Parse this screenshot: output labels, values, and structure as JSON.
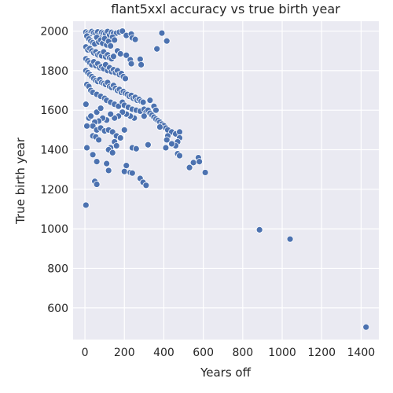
{
  "chart_data": {
    "type": "scatter",
    "title": "flant5xxl accuracy vs true birth year",
    "xlabel": "Years off",
    "ylabel": "True birth year",
    "xlim": [
      -60,
      1490
    ],
    "ylim": [
      440,
      2050
    ],
    "xticks": [
      0,
      200,
      400,
      600,
      800,
      1000,
      1200,
      1400
    ],
    "yticks": [
      600,
      800,
      1000,
      1200,
      1400,
      1600,
      1800,
      2000
    ],
    "grid": true,
    "background": "#eaeaf2",
    "grid_color": "#ffffff",
    "point_color": "#4c72b0",
    "points": [
      [
        5,
        1995
      ],
      [
        15,
        1990
      ],
      [
        25,
        1985
      ],
      [
        35,
        1998
      ],
      [
        45,
        1992
      ],
      [
        55,
        1988
      ],
      [
        65,
        1996
      ],
      [
        75,
        1982
      ],
      [
        85,
        1994
      ],
      [
        95,
        1990
      ],
      [
        105,
        1986
      ],
      [
        115,
        1998
      ],
      [
        125,
        1980
      ],
      [
        135,
        1994
      ],
      [
        145,
        1988
      ],
      [
        160,
        1990
      ],
      [
        175,
        1995
      ],
      [
        190,
        2000
      ],
      [
        210,
        1978
      ],
      [
        235,
        1985
      ],
      [
        240,
        1966
      ],
      [
        255,
        1958
      ],
      [
        10,
        1975
      ],
      [
        20,
        1960
      ],
      [
        30,
        1950
      ],
      [
        40,
        1942
      ],
      [
        50,
        1935
      ],
      [
        60,
        1968
      ],
      [
        70,
        1945
      ],
      [
        80,
        1955
      ],
      [
        90,
        1938
      ],
      [
        100,
        1962
      ],
      [
        110,
        1930
      ],
      [
        120,
        1948
      ],
      [
        130,
        1925
      ],
      [
        140,
        1970
      ],
      [
        150,
        1955
      ],
      [
        5,
        1920
      ],
      [
        15,
        1905
      ],
      [
        25,
        1912
      ],
      [
        35,
        1900
      ],
      [
        45,
        1890
      ],
      [
        55,
        1895
      ],
      [
        65,
        1880
      ],
      [
        75,
        1885
      ],
      [
        85,
        1875
      ],
      [
        95,
        1895
      ],
      [
        105,
        1870
      ],
      [
        115,
        1880
      ],
      [
        125,
        1865
      ],
      [
        135,
        1860
      ],
      [
        145,
        1872
      ],
      [
        165,
        1900
      ],
      [
        180,
        1885
      ],
      [
        210,
        1878
      ],
      [
        230,
        1855
      ],
      [
        235,
        1835
      ],
      [
        280,
        1858
      ],
      [
        285,
        1830
      ],
      [
        390,
        1990
      ],
      [
        415,
        1950
      ],
      [
        365,
        1910
      ],
      [
        5,
        1860
      ],
      [
        15,
        1850
      ],
      [
        25,
        1840
      ],
      [
        35,
        1830
      ],
      [
        45,
        1845
      ],
      [
        55,
        1825
      ],
      [
        65,
        1835
      ],
      [
        75,
        1815
      ],
      [
        85,
        1820
      ],
      [
        95,
        1810
      ],
      [
        105,
        1830
      ],
      [
        115,
        1800
      ],
      [
        125,
        1815
      ],
      [
        135,
        1795
      ],
      [
        145,
        1805
      ],
      [
        155,
        1790
      ],
      [
        165,
        1800
      ],
      [
        175,
        1780
      ],
      [
        185,
        1785
      ],
      [
        195,
        1770
      ],
      [
        205,
        1760
      ],
      [
        5,
        1800
      ],
      [
        15,
        1790
      ],
      [
        25,
        1780
      ],
      [
        35,
        1770
      ],
      [
        45,
        1760
      ],
      [
        55,
        1750
      ],
      [
        65,
        1745
      ],
      [
        75,
        1755
      ],
      [
        85,
        1740
      ],
      [
        95,
        1735
      ],
      [
        105,
        1730
      ],
      [
        115,
        1740
      ],
      [
        125,
        1720
      ],
      [
        135,
        1715
      ],
      [
        145,
        1725
      ],
      [
        155,
        1710
      ],
      [
        165,
        1700
      ],
      [
        175,
        1705
      ],
      [
        185,
        1690
      ],
      [
        195,
        1695
      ],
      [
        205,
        1685
      ],
      [
        215,
        1680
      ],
      [
        225,
        1670
      ],
      [
        235,
        1675
      ],
      [
        245,
        1660
      ],
      [
        255,
        1665
      ],
      [
        265,
        1650
      ],
      [
        275,
        1655
      ],
      [
        285,
        1645
      ],
      [
        295,
        1640
      ],
      [
        10,
        1730
      ],
      [
        20,
        1720
      ],
      [
        30,
        1700
      ],
      [
        40,
        1690
      ],
      [
        60,
        1680
      ],
      [
        80,
        1670
      ],
      [
        100,
        1660
      ],
      [
        110,
        1650
      ],
      [
        130,
        1640
      ],
      [
        150,
        1630
      ],
      [
        170,
        1620
      ],
      [
        190,
        1640
      ],
      [
        200,
        1625
      ],
      [
        220,
        1615
      ],
      [
        240,
        1605
      ],
      [
        260,
        1600
      ],
      [
        280,
        1595
      ],
      [
        300,
        1605
      ],
      [
        310,
        1590
      ],
      [
        320,
        1600
      ],
      [
        330,
        1585
      ],
      [
        340,
        1575
      ],
      [
        350,
        1565
      ],
      [
        360,
        1555
      ],
      [
        370,
        1548
      ],
      [
        380,
        1540
      ],
      [
        390,
        1530
      ],
      [
        400,
        1522
      ],
      [
        410,
        1510
      ],
      [
        420,
        1500
      ],
      [
        440,
        1490
      ],
      [
        460,
        1480
      ],
      [
        480,
        1490
      ],
      [
        480,
        1460
      ],
      [
        470,
        1440
      ],
      [
        460,
        1420
      ],
      [
        470,
        1380
      ],
      [
        420,
        1470
      ],
      [
        415,
        1450
      ],
      [
        410,
        1410
      ],
      [
        440,
        1430
      ],
      [
        330,
        1650
      ],
      [
        350,
        1620
      ],
      [
        360,
        1600
      ],
      [
        300,
        1570
      ],
      [
        250,
        1560
      ],
      [
        230,
        1570
      ],
      [
        210,
        1580
      ],
      [
        190,
        1590
      ],
      [
        170,
        1570
      ],
      [
        150,
        1560
      ],
      [
        130,
        1580
      ],
      [
        110,
        1550
      ],
      [
        90,
        1560
      ],
      [
        70,
        1545
      ],
      [
        50,
        1540
      ],
      [
        40,
        1520
      ],
      [
        60,
        1500
      ],
      [
        80,
        1510
      ],
      [
        100,
        1495
      ],
      [
        120,
        1500
      ],
      [
        140,
        1490
      ],
      [
        160,
        1470
      ],
      [
        180,
        1460
      ],
      [
        150,
        1440
      ],
      [
        160,
        1420
      ],
      [
        130,
        1410
      ],
      [
        120,
        1400
      ],
      [
        140,
        1385
      ],
      [
        110,
        1330
      ],
      [
        120,
        1295
      ],
      [
        200,
        1290
      ],
      [
        210,
        1320
      ],
      [
        230,
        1285
      ],
      [
        240,
        1282
      ],
      [
        280,
        1255
      ],
      [
        295,
        1235
      ],
      [
        310,
        1220
      ],
      [
        50,
        1240
      ],
      [
        60,
        1225
      ],
      [
        40,
        1375
      ],
      [
        60,
        1340
      ],
      [
        10,
        1410
      ],
      [
        20,
        1560
      ],
      [
        30,
        1570
      ],
      [
        60,
        1590
      ],
      [
        80,
        1610
      ],
      [
        10,
        1520
      ],
      [
        5,
        1630
      ],
      [
        40,
        1470
      ],
      [
        55,
        1465
      ],
      [
        70,
        1450
      ],
      [
        200,
        1500
      ],
      [
        240,
        1410
      ],
      [
        260,
        1405
      ],
      [
        320,
        1425
      ],
      [
        380,
        1515
      ],
      [
        480,
        1370
      ],
      [
        530,
        1310
      ],
      [
        550,
        1335
      ],
      [
        575,
        1360
      ],
      [
        580,
        1340
      ],
      [
        610,
        1285
      ],
      [
        5,
        1120
      ],
      [
        885,
        995
      ],
      [
        1040,
        948
      ],
      [
        1425,
        503
      ]
    ]
  }
}
